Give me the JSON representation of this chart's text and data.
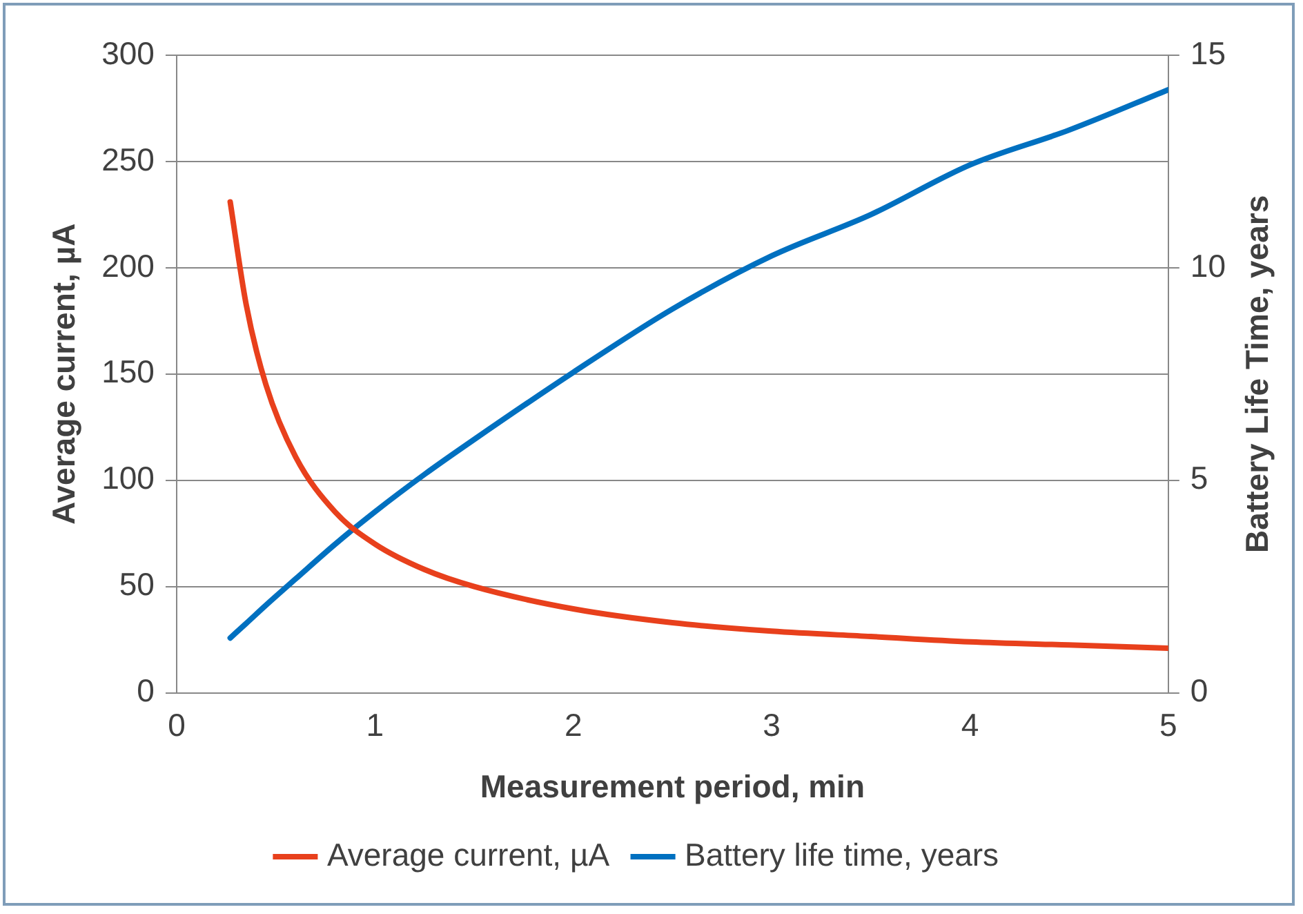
{
  "chart_data": {
    "type": "line",
    "xlabel": "Measurement period, min",
    "ylabel": "Average current, µA",
    "y2label": "Battery Life Time, years",
    "xlim": [
      0,
      5
    ],
    "xticks": [
      0,
      1,
      2,
      3,
      4,
      5
    ],
    "ylim": [
      0,
      300
    ],
    "yticks": [
      0,
      50,
      100,
      150,
      200,
      250,
      300
    ],
    "y2lim": [
      0,
      15
    ],
    "y2ticks": [
      0,
      5,
      10,
      15
    ],
    "grid": "y",
    "legend": "bottom",
    "marker": "none",
    "line_style": "solid",
    "series": [
      {
        "name": "Average current, µA",
        "color": "#e8401c",
        "x": [
          0.27,
          0.35,
          0.45,
          0.6,
          0.8,
          1,
          1.25,
          1.5,
          2,
          2.5,
          3,
          3.5,
          4,
          4.5,
          5
        ],
        "values": [
          231,
          183,
          145,
          111,
          85,
          70,
          58,
          50,
          39.5,
          33,
          29,
          26.5,
          24,
          22.5,
          21
        ]
      },
      {
        "name": "Battery life time, years",
        "color": "#0070c0",
        "axis": "y2",
        "x": [
          0.27,
          0.35,
          0.45,
          0.6,
          0.8,
          1,
          1.25,
          1.5,
          2,
          2.5,
          3,
          3.5,
          4,
          4.5,
          5
        ],
        "values": [
          1.29,
          1.63,
          2.06,
          2.68,
          3.5,
          4.26,
          5.14,
          5.96,
          7.54,
          9.03,
          10.28,
          11.25,
          12.42,
          13.24,
          14.19
        ]
      }
    ]
  }
}
